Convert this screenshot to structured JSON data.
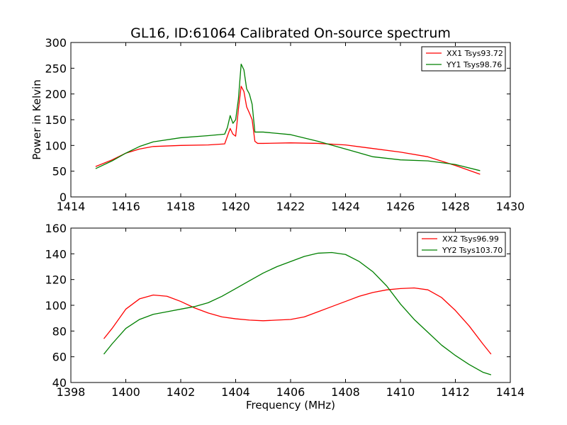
{
  "chart_data": [
    {
      "type": "line",
      "title": "GL16, ID:61064 Calibrated On-source spectrum",
      "xlabel": "",
      "ylabel": "Power in Kelvin",
      "xlim": [
        1414,
        1430
      ],
      "ylim": [
        0,
        300
      ],
      "xticks": [
        "1414",
        "1416",
        "1418",
        "1420",
        "1422",
        "1424",
        "1426",
        "1428",
        "1430"
      ],
      "yticks": [
        "0",
        "50",
        "100",
        "150",
        "200",
        "250",
        "300"
      ],
      "legend_position": "top-right",
      "grid": false,
      "series": [
        {
          "name": "XX1 Tsys93.72",
          "color": "#ff0000",
          "x": [
            1414.9,
            1415.5,
            1416.0,
            1416.5,
            1417.0,
            1418.0,
            1419.0,
            1419.6,
            1419.7,
            1419.8,
            1419.9,
            1420.0,
            1420.1,
            1420.2,
            1420.3,
            1420.4,
            1420.5,
            1420.6,
            1420.7,
            1420.8,
            1421.0,
            1422.0,
            1423.0,
            1424.0,
            1425.0,
            1426.0,
            1427.0,
            1428.0,
            1428.9
          ],
          "values": [
            59,
            72,
            85,
            93,
            98,
            100,
            101,
            103,
            118,
            133,
            122,
            118,
            170,
            215,
            205,
            175,
            163,
            150,
            108,
            104,
            104,
            105,
            104,
            101,
            94,
            87,
            78,
            61,
            44
          ]
        },
        {
          "name": "YY1 Tsys98.76",
          "color": "#008000",
          "x": [
            1414.9,
            1415.5,
            1416.0,
            1416.5,
            1417.0,
            1418.0,
            1419.0,
            1419.6,
            1419.7,
            1419.8,
            1419.9,
            1420.0,
            1420.1,
            1420.2,
            1420.3,
            1420.4,
            1420.5,
            1420.6,
            1420.7,
            1420.8,
            1421.0,
            1422.0,
            1423.0,
            1424.0,
            1425.0,
            1426.0,
            1427.0,
            1428.0,
            1428.9
          ],
          "values": [
            55,
            70,
            85,
            98,
            107,
            115,
            119,
            122,
            135,
            158,
            143,
            150,
            190,
            258,
            247,
            210,
            200,
            180,
            126,
            126,
            126,
            121,
            108,
            93,
            78,
            72,
            70,
            63,
            51
          ]
        }
      ]
    },
    {
      "type": "line",
      "title": "",
      "xlabel": "Frequency (MHz)",
      "ylabel": "",
      "xlim": [
        1398,
        1414
      ],
      "ylim": [
        40,
        160
      ],
      "xticks": [
        "1398",
        "1400",
        "1402",
        "1404",
        "1406",
        "1408",
        "1410",
        "1412",
        "1414"
      ],
      "yticks": [
        "40",
        "60",
        "80",
        "100",
        "120",
        "140",
        "160"
      ],
      "legend_position": "top-right",
      "grid": false,
      "series": [
        {
          "name": "XX2 Tsys96.99",
          "color": "#ff0000",
          "x": [
            1399.2,
            1399.5,
            1400.0,
            1400.5,
            1401.0,
            1401.5,
            1402.0,
            1402.5,
            1403.0,
            1403.5,
            1404.0,
            1404.5,
            1405.0,
            1405.5,
            1406.0,
            1406.5,
            1407.0,
            1407.5,
            1408.0,
            1408.5,
            1409.0,
            1409.5,
            1410.0,
            1410.5,
            1411.0,
            1411.5,
            1412.0,
            1412.5,
            1413.0,
            1413.3
          ],
          "values": [
            74,
            82,
            97,
            105,
            108,
            107,
            103,
            98,
            94,
            91,
            89.5,
            88.5,
            88,
            88.5,
            89,
            91,
            95,
            99,
            103,
            107,
            110,
            112,
            113,
            113.5,
            112,
            106,
            96,
            84,
            70,
            62
          ]
        },
        {
          "name": "YY2 Tsys103.70",
          "color": "#008000",
          "x": [
            1399.2,
            1399.5,
            1400.0,
            1400.5,
            1401.0,
            1401.5,
            1402.0,
            1402.5,
            1403.0,
            1403.5,
            1404.0,
            1404.5,
            1405.0,
            1405.5,
            1406.0,
            1406.5,
            1407.0,
            1407.5,
            1408.0,
            1408.5,
            1409.0,
            1409.5,
            1410.0,
            1410.5,
            1411.0,
            1411.5,
            1412.0,
            1412.5,
            1413.0,
            1413.3
          ],
          "values": [
            62,
            70,
            82,
            89,
            93,
            95,
            97,
            99,
            102,
            107,
            113,
            119,
            125,
            130,
            134,
            138,
            140.5,
            141,
            139.5,
            134,
            126,
            115,
            101,
            89,
            79,
            69,
            61,
            54,
            48,
            46
          ]
        }
      ]
    }
  ]
}
